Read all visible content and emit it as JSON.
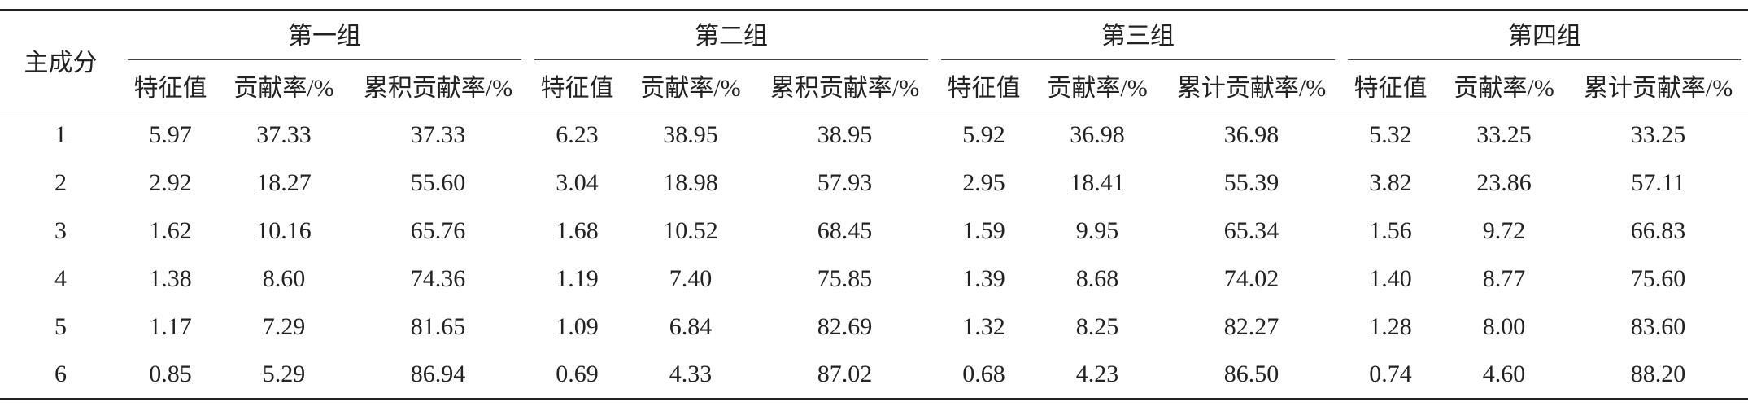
{
  "table": {
    "row_label": "主成分",
    "groups": [
      {
        "name": "第一组",
        "columns": [
          "特征值",
          "贡献率/%",
          "累积贡献率/%"
        ]
      },
      {
        "name": "第二组",
        "columns": [
          "特征值",
          "贡献率/%",
          "累积贡献率/%"
        ]
      },
      {
        "name": "第三组",
        "columns": [
          "特征值",
          "贡献率/%",
          "累计贡献率/%"
        ]
      },
      {
        "name": "第四组",
        "columns": [
          "特征值",
          "贡献率/%",
          "累计贡献率/%"
        ]
      }
    ],
    "rows": [
      [
        "1",
        "5.97",
        "37.33",
        "37.33",
        "6.23",
        "38.95",
        "38.95",
        "5.92",
        "36.98",
        "36.98",
        "5.32",
        "33.25",
        "33.25"
      ],
      [
        "2",
        "2.92",
        "18.27",
        "55.60",
        "3.04",
        "18.98",
        "57.93",
        "2.95",
        "18.41",
        "55.39",
        "3.82",
        "23.86",
        "57.11"
      ],
      [
        "3",
        "1.62",
        "10.16",
        "65.76",
        "1.68",
        "10.52",
        "68.45",
        "1.59",
        "9.95",
        "65.34",
        "1.56",
        "9.72",
        "66.83"
      ],
      [
        "4",
        "1.38",
        "8.60",
        "74.36",
        "1.19",
        "7.40",
        "75.85",
        "1.39",
        "8.68",
        "74.02",
        "1.40",
        "8.77",
        "75.60"
      ],
      [
        "5",
        "1.17",
        "7.29",
        "81.65",
        "1.09",
        "6.84",
        "82.69",
        "1.32",
        "8.25",
        "82.27",
        "1.28",
        "8.00",
        "83.60"
      ],
      [
        "6",
        "0.85",
        "5.29",
        "86.94",
        "0.69",
        "4.33",
        "87.02",
        "0.68",
        "4.23",
        "86.50",
        "0.74",
        "4.60",
        "88.20"
      ]
    ]
  }
}
